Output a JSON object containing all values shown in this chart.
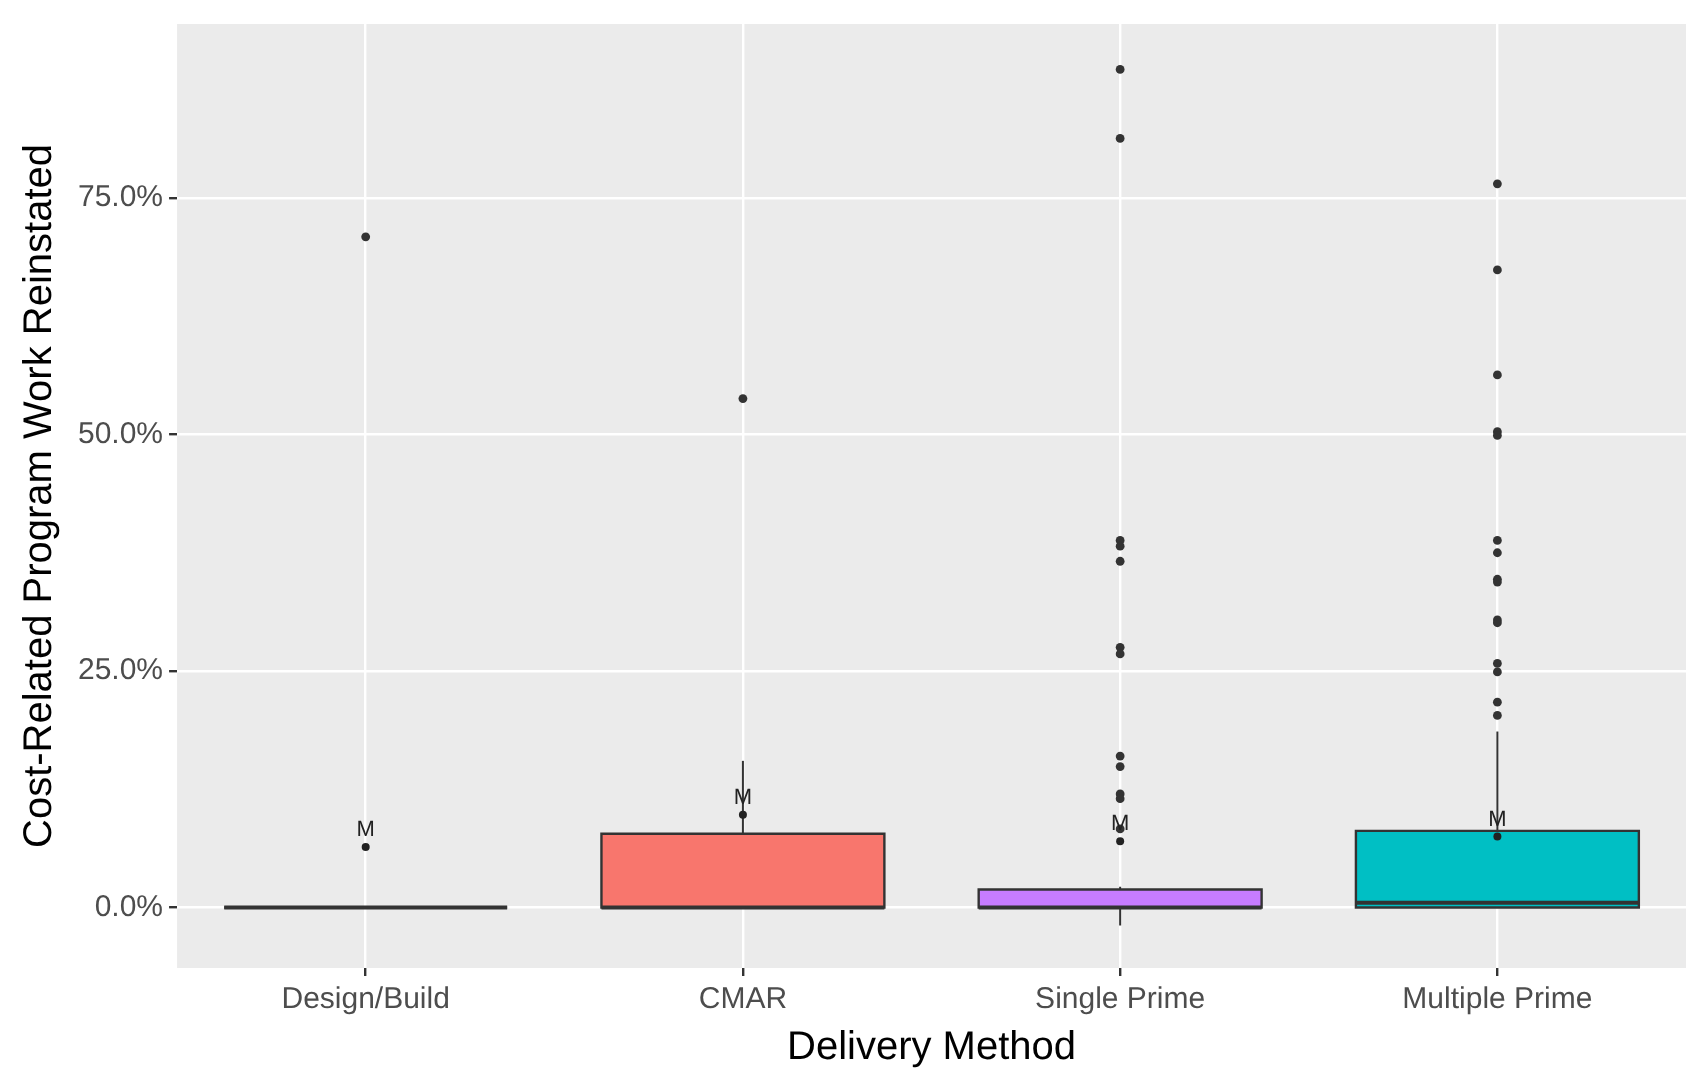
{
  "chart_data": {
    "type": "box",
    "xlabel": "Delivery Method",
    "ylabel": "Cost-Related Program Work Reinstated",
    "categories": [
      "Design/Build",
      "CMAR",
      "Single Prime",
      "Multiple Prime"
    ],
    "colors": [
      "#333333",
      "#f8766d",
      "#c77cff",
      "#00bfc4"
    ],
    "boxes": [
      {
        "low": 0,
        "q1": 0,
        "median": 0,
        "q3": 0,
        "high": 0,
        "mean": 6.4,
        "outliers": [
          70.9
        ]
      },
      {
        "low": 0,
        "q1": 0,
        "median": 0,
        "q3": 7.8,
        "high": 15.5,
        "mean": 9.8,
        "outliers": [
          53.8
        ]
      },
      {
        "low": -1.9,
        "q1": 0,
        "median": 0,
        "q3": 1.9,
        "high": 2.2,
        "mean": 7.0,
        "outliers": [
          88.6,
          81.3,
          38.8,
          38.2,
          36.6,
          27.5,
          26.8,
          16.0,
          14.9,
          12.0,
          11.5,
          8.3
        ]
      },
      {
        "low": 0,
        "q1": 0,
        "median": 0.5,
        "q3": 8.1,
        "high": 18.6,
        "mean": 7.5,
        "outliers": [
          76.5,
          67.4,
          56.3,
          50.3,
          49.9,
          38.8,
          37.5,
          34.7,
          34.4,
          30.4,
          30.1,
          25.8,
          24.9,
          21.7,
          20.3
        ]
      }
    ],
    "annotations": [
      "M",
      "M",
      "M",
      "M"
    ],
    "ylim": [
      -6.4,
      93.4
    ],
    "yticks": [
      {
        "value": 0,
        "label": "0.0%"
      },
      {
        "value": 25,
        "label": "25.0%"
      },
      {
        "value": 50,
        "label": "50.0%"
      },
      {
        "value": 75,
        "label": "75.0%"
      }
    ],
    "grid": true,
    "legend": false
  }
}
